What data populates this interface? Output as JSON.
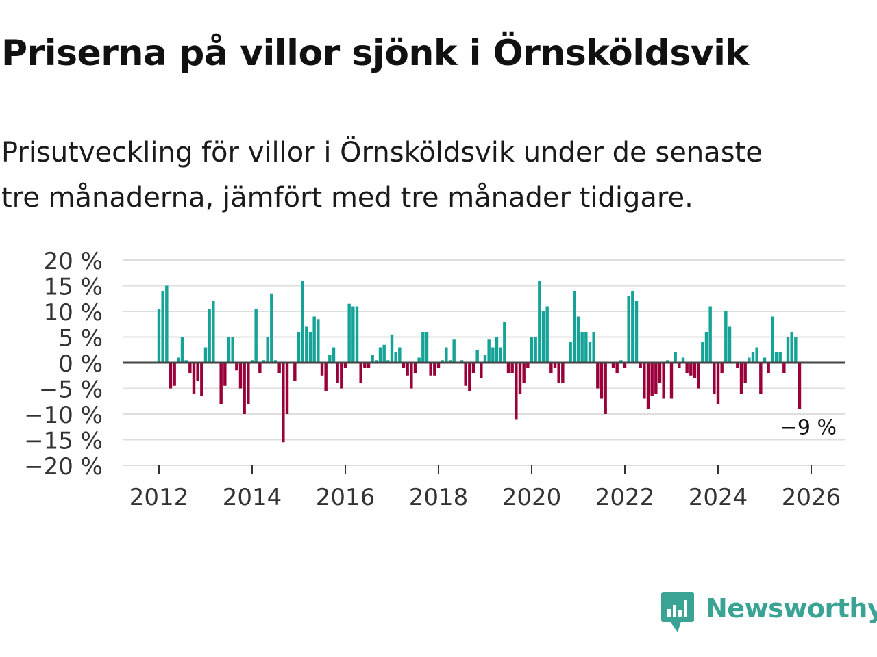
{
  "title": "Priserna på villor sjönk i Örnsköldsvik",
  "subtitle_line1": "Prisutveckling för villor i Örnsköldsvik under de senaste",
  "subtitle_line2": "tre månaderna, jämfört med tre månader tidigare.",
  "brand": "Newsworthy",
  "colors": {
    "positive": "#15a398",
    "negative": "#99003a",
    "grid": "#dddddd",
    "zero": "#444444",
    "brand": "#3aa394"
  },
  "chart_data": {
    "type": "bar",
    "ylim": [
      -20,
      20
    ],
    "yticks": [
      20,
      15,
      10,
      5,
      0,
      -5,
      -10,
      -15,
      -20
    ],
    "ytick_labels": [
      "20 %",
      "15 %",
      "10 %",
      "5 %",
      "0 %",
      "−5 %",
      "−10 %",
      "−15 %",
      "−20 %"
    ],
    "xticks": [
      2012,
      2014,
      2016,
      2018,
      2020,
      2022,
      2024,
      2026
    ],
    "xtick_labels": [
      "2012",
      "2014",
      "2016",
      "2018",
      "2020",
      "2022",
      "2024",
      "2026"
    ],
    "x_start": 2012,
    "annotation": {
      "label": "−9 %",
      "value": -9
    },
    "values": [
      10.5,
      14,
      15,
      -5,
      -4.5,
      1,
      5,
      0.5,
      -2,
      -6,
      -3.5,
      -6.5,
      3,
      10.5,
      12,
      0,
      -8,
      -4.5,
      5,
      5,
      -1.5,
      -5,
      -10,
      -8,
      0.5,
      10.5,
      -2,
      0.5,
      5,
      13.5,
      0.5,
      -2,
      -15.5,
      -10,
      0,
      -3.5,
      6,
      16,
      7,
      6,
      9,
      8.5,
      -2.5,
      -5.5,
      1.5,
      3,
      -4,
      -5,
      -1,
      11.5,
      11,
      11,
      -4,
      -1,
      -1,
      1.5,
      0.5,
      3,
      3.5,
      0.5,
      5.5,
      2,
      3,
      -1,
      -2.5,
      -5,
      -2,
      1,
      6,
      6,
      -2.5,
      -2.5,
      -1,
      0.5,
      3,
      0.5,
      4.5,
      0,
      0.5,
      -4.5,
      -5.5,
      -2,
      2.5,
      -3,
      1.5,
      4.5,
      3,
      5,
      3,
      8,
      -2,
      -2,
      -11,
      -6,
      -4,
      -1,
      5,
      5,
      16,
      10,
      11,
      -2,
      -1,
      -4,
      -4,
      0,
      4,
      14,
      9,
      6,
      6,
      4,
      6,
      -5,
      -7,
      -10,
      0,
      -1,
      -2,
      0.5,
      -1,
      13,
      14,
      12,
      -1,
      -7,
      -9,
      -6.5,
      -6,
      -4,
      -7,
      0.5,
      -7,
      2,
      -1,
      1,
      -2,
      -2.5,
      -3,
      -5,
      4,
      6,
      11,
      -6,
      -8,
      -2,
      10,
      7,
      0,
      -1,
      -6,
      -4,
      1,
      2,
      3,
      -6,
      1,
      -2,
      9,
      2,
      2,
      -2,
      5,
      6,
      5,
      -9
    ]
  }
}
